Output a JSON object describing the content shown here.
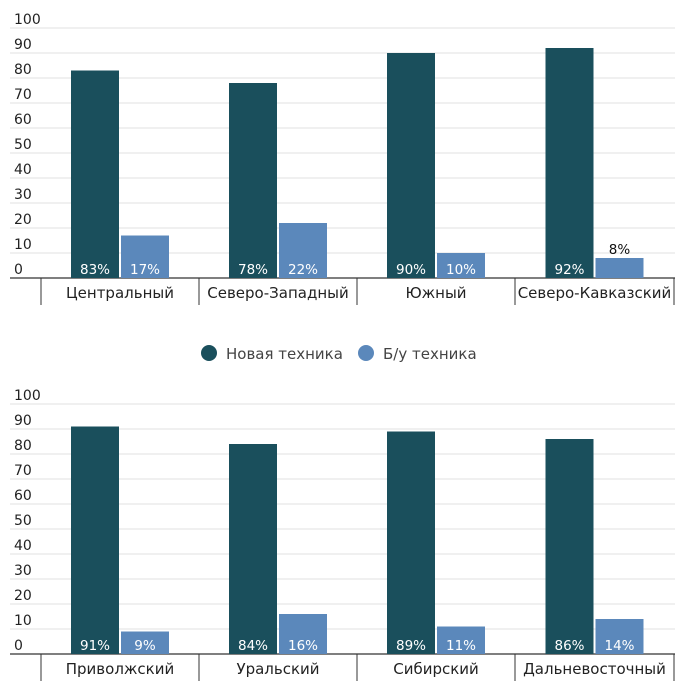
{
  "legend": {
    "items": [
      {
        "label": "Новая техника",
        "color": "#1a4f5c"
      },
      {
        "label": "Б/у техника",
        "color": "#5b88bb"
      }
    ]
  },
  "chart_data": [
    {
      "type": "bar",
      "ylim": [
        0,
        100
      ],
      "yticks": [
        0,
        10,
        20,
        30,
        40,
        50,
        60,
        70,
        80,
        90,
        100
      ],
      "grid": true,
      "categories": [
        "Центральный",
        "Северо-Западный",
        "Южный",
        "Северо-Кавказский"
      ],
      "series": [
        {
          "name": "Новая техника",
          "color": "#1a4f5c",
          "values": [
            83,
            78,
            90,
            92
          ],
          "labels": [
            "83%",
            "78%",
            "90%",
            "92%"
          ]
        },
        {
          "name": "Б/у техника",
          "color": "#5b88bb",
          "values": [
            17,
            22,
            10,
            8
          ],
          "labels": [
            "17%",
            "22%",
            "10%",
            "8%"
          ]
        }
      ]
    },
    {
      "type": "bar",
      "ylim": [
        0,
        100
      ],
      "yticks": [
        0,
        10,
        20,
        30,
        40,
        50,
        60,
        70,
        80,
        90,
        100
      ],
      "grid": true,
      "categories": [
        "Приволжский",
        "Уральский",
        "Сибирский",
        "Дальневосточный"
      ],
      "series": [
        {
          "name": "Новая техника",
          "color": "#1a4f5c",
          "values": [
            91,
            84,
            89,
            86
          ],
          "labels": [
            "91%",
            "84%",
            "89%",
            "86%"
          ]
        },
        {
          "name": "Б/у техника",
          "color": "#5b88bb",
          "values": [
            9,
            16,
            11,
            14
          ],
          "labels": [
            "9%",
            "16%",
            "11%",
            "14%"
          ]
        }
      ]
    }
  ]
}
